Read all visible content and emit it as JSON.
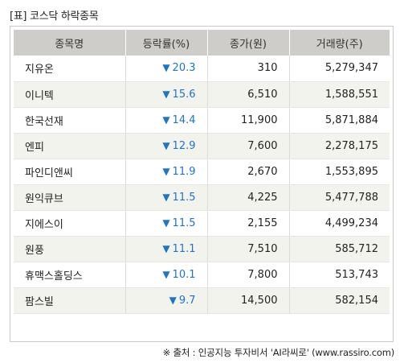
{
  "title": "[표] 코스닥 하락종목",
  "headers": [
    "종목명",
    "등락률(%)",
    "종가(원)",
    "거래량(주)"
  ],
  "down_symbol": "▼",
  "rows": [
    {
      "name": "지유온",
      "rate": "20.3",
      "price": "310",
      "volume": "5,279,347"
    },
    {
      "name": "이니텍",
      "rate": "15.6",
      "price": "6,510",
      "volume": "1,588,551"
    },
    {
      "name": "한국선재",
      "rate": "14.4",
      "price": "11,900",
      "volume": "5,871,884"
    },
    {
      "name": "엔피",
      "rate": "12.9",
      "price": "7,600",
      "volume": "2,278,175"
    },
    {
      "name": "파인디앤씨",
      "rate": "11.9",
      "price": "2,670",
      "volume": "1,553,895"
    },
    {
      "name": "원익큐브",
      "rate": "11.5",
      "price": "4,225",
      "volume": "5,477,788"
    },
    {
      "name": "지에스이",
      "rate": "11.5",
      "price": "2,155",
      "volume": "4,499,234"
    },
    {
      "name": "원풍",
      "rate": "11.1",
      "price": "7,510",
      "volume": "585,712"
    },
    {
      "name": "휴맥스홀딩스",
      "rate": "10.1",
      "price": "7,800",
      "volume": "513,743"
    },
    {
      "name": "팜스빌",
      "rate": "9.7",
      "price": "14,500",
      "volume": "582,154"
    }
  ],
  "source": "※ 출처 : 인공지능 투자비서 'AI라씨로' (www.rassiro.com)",
  "colors": {
    "down": "#1e74c8",
    "header_bg": "#cecdc9",
    "alt_row_bg": "#f3f3ee"
  }
}
